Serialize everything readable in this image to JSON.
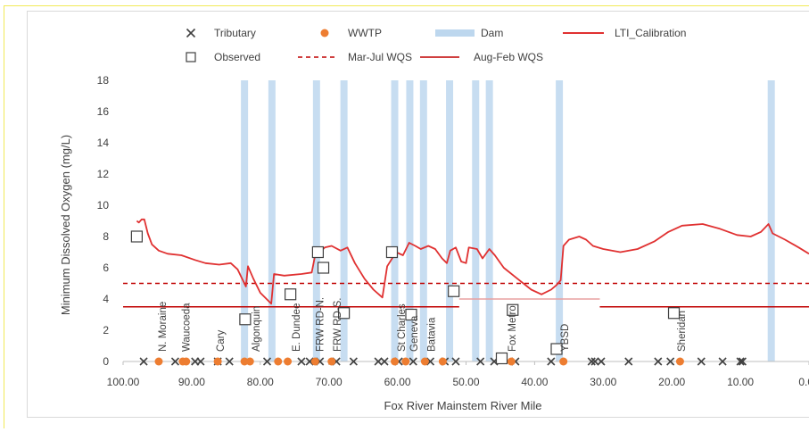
{
  "chart_data": {
    "type": "line",
    "xlabel": "Fox River Mainstem River Mile",
    "ylabel": "Minimum Dissolved Oxygen (mg/L)",
    "xlim": [
      100,
      0
    ],
    "ylim": [
      0,
      18
    ],
    "x_reversed": true,
    "x_ticks": [
      "100.00",
      "90.00",
      "80.00",
      "70.00",
      "60.00",
      "50.00",
      "40.00",
      "30.00",
      "20.00",
      "10.00",
      "0.00"
    ],
    "x_tick_values": [
      100,
      90,
      80,
      70,
      60,
      50,
      40,
      30,
      20,
      10,
      0
    ],
    "y_ticks": [
      "0",
      "2",
      "4",
      "6",
      "8",
      "10",
      "12",
      "14",
      "16",
      "18"
    ],
    "y_tick_values": [
      0,
      2,
      4,
      6,
      8,
      10,
      12,
      14,
      16,
      18
    ],
    "grid": false,
    "legend_position": "top",
    "legend": [
      {
        "label": "Tributary",
        "marker": "x",
        "color": "#404040"
      },
      {
        "label": "WWTP",
        "marker": "circle",
        "color": "#ed7d31"
      },
      {
        "label": "Dam",
        "marker": "band",
        "color": "#bdd7ee"
      },
      {
        "label": "LTI_Calibration",
        "marker": "line",
        "color": "#e03131"
      },
      {
        "label": "Observed",
        "marker": "square",
        "color": "#404040"
      },
      {
        "label": "Mar-Jul WQS",
        "marker": "dashed",
        "color": "#c00000"
      },
      {
        "label": "Aug-Feb WQS",
        "marker": "thinline",
        "color": "#c00000"
      }
    ],
    "colors": {
      "dam": "#bdd7ee",
      "calibration": "#e03131",
      "wqs": "#c00000",
      "wqs_aug_feb_mid": "#e8a0a0",
      "wwtp": "#ed7d31",
      "tributary": "#404040",
      "observed": "#404040",
      "axis": "#bfbfbf",
      "text": "#404040"
    },
    "dams": [
      82.3,
      78.3,
      71.8,
      67.8,
      60.4,
      58.2,
      56.2,
      52.4,
      48.6,
      46.6,
      36.4,
      5.5
    ],
    "calibration": [
      [
        98,
        9.0
      ],
      [
        97.7,
        8.9
      ],
      [
        97.3,
        9.1
      ],
      [
        96.9,
        9.1
      ],
      [
        96.4,
        8.2
      ],
      [
        95.8,
        7.5
      ],
      [
        94.8,
        7.1
      ],
      [
        93.5,
        6.9
      ],
      [
        91.5,
        6.8
      ],
      [
        89.5,
        6.5
      ],
      [
        88,
        6.3
      ],
      [
        86,
        6.2
      ],
      [
        84.3,
        6.3
      ],
      [
        83.3,
        5.9
      ],
      [
        82.1,
        4.8
      ],
      [
        81.8,
        6.1
      ],
      [
        81.0,
        5.3
      ],
      [
        80,
        4.4
      ],
      [
        78.4,
        3.7
      ],
      [
        78.0,
        5.6
      ],
      [
        76.5,
        5.5
      ],
      [
        74,
        5.6
      ],
      [
        72.5,
        5.7
      ],
      [
        72.0,
        6.8
      ],
      [
        71.3,
        7.0
      ],
      [
        70.6,
        7.3
      ],
      [
        69.6,
        7.4
      ],
      [
        68.3,
        7.1
      ],
      [
        67.3,
        7.3
      ],
      [
        66.2,
        6.3
      ],
      [
        64.8,
        5.3
      ],
      [
        63.5,
        4.6
      ],
      [
        62.2,
        4.1
      ],
      [
        61.5,
        6.1
      ],
      [
        60.2,
        7.0
      ],
      [
        59.2,
        6.8
      ],
      [
        58.3,
        7.6
      ],
      [
        57.4,
        7.4
      ],
      [
        56.6,
        7.2
      ],
      [
        55.5,
        7.4
      ],
      [
        54.5,
        7.2
      ],
      [
        53.5,
        6.6
      ],
      [
        52.8,
        6.3
      ],
      [
        52.3,
        7.1
      ],
      [
        51.5,
        7.3
      ],
      [
        50.7,
        6.4
      ],
      [
        50.0,
        6.3
      ],
      [
        49.6,
        7.3
      ],
      [
        48.4,
        7.2
      ],
      [
        47.6,
        6.6
      ],
      [
        46.6,
        7.2
      ],
      [
        45.8,
        6.8
      ],
      [
        44.5,
        6.0
      ],
      [
        42.5,
        5.3
      ],
      [
        40.5,
        4.6
      ],
      [
        39.0,
        4.3
      ],
      [
        37.6,
        4.6
      ],
      [
        36.8,
        4.9
      ],
      [
        36.2,
        5.2
      ],
      [
        35.8,
        7.4
      ],
      [
        35.0,
        7.8
      ],
      [
        33.5,
        8.0
      ],
      [
        32.5,
        7.8
      ],
      [
        31.5,
        7.4
      ],
      [
        30.0,
        7.2
      ],
      [
        27.5,
        7.0
      ],
      [
        25.0,
        7.2
      ],
      [
        22.5,
        7.7
      ],
      [
        20.5,
        8.3
      ],
      [
        18.5,
        8.7
      ],
      [
        15.5,
        8.8
      ],
      [
        13.0,
        8.5
      ],
      [
        10.5,
        8.1
      ],
      [
        8.5,
        8.0
      ],
      [
        7.0,
        8.3
      ],
      [
        5.9,
        8.8
      ],
      [
        5.3,
        8.2
      ],
      [
        3.5,
        7.8
      ],
      [
        1.5,
        7.3
      ],
      [
        0,
        6.9
      ]
    ],
    "mar_jul_wqs": [
      [
        100,
        5.0
      ],
      [
        0,
        5.0
      ]
    ],
    "aug_feb_wqs": [
      [
        [
          100,
          3.5
        ],
        [
          51,
          3.5
        ]
      ],
      [
        [
          51,
          4.0
        ],
        [
          30.5,
          4.0
        ]
      ],
      [
        [
          30.5,
          3.5
        ],
        [
          0,
          3.5
        ]
      ]
    ],
    "observed": [
      [
        98,
        8.0
      ],
      [
        82.2,
        2.7
      ],
      [
        75.6,
        4.3
      ],
      [
        71.6,
        7.0
      ],
      [
        70.8,
        6.0
      ],
      [
        67.8,
        3.1
      ],
      [
        60.8,
        7.0
      ],
      [
        58.0,
        3.0
      ],
      [
        51.8,
        4.5
      ],
      [
        44.8,
        0.2
      ],
      [
        43.2,
        3.3
      ],
      [
        36.8,
        0.8
      ],
      [
        19.7,
        3.1
      ]
    ],
    "wwtp": [
      94.8,
      91.3,
      90.8,
      86.2,
      82.3,
      81.5,
      77.4,
      76.0,
      72.0,
      69.6,
      60.4,
      58.8,
      56.0,
      53.4,
      43.4,
      35.8,
      18.8
    ],
    "tributary": [
      97,
      92.4,
      89.5,
      88.7,
      86.2,
      84.5,
      79.0,
      74.0,
      72.8,
      71.3,
      68.9,
      66.4,
      62.8,
      61.9,
      59.8,
      57.7,
      55.2,
      53.1,
      51.5,
      47.9,
      45.9,
      42.8,
      37.6,
      31.7,
      31.2,
      30.3,
      26.3,
      22.0,
      20.2,
      15.7,
      12.6,
      10.0,
      9.7
    ],
    "locations": [
      {
        "label": "N. Moraine",
        "x": 94.3
      },
      {
        "label": "Waucoeda",
        "x": 90.8
      },
      {
        "label": "Cary",
        "x": 85.8
      },
      {
        "label": "Algonquin",
        "x": 80.6
      },
      {
        "label": "E. Dundee",
        "x": 74.8
      },
      {
        "label": "FRW RD-N.",
        "x": 71.3
      },
      {
        "label": "FRW RD-S.",
        "x": 68.8
      },
      {
        "label": "St Charles",
        "x": 59.4
      },
      {
        "label": "Geneva",
        "x": 57.6
      },
      {
        "label": "Batavia",
        "x": 55.1
      },
      {
        "label": "Fox Metro",
        "x": 43.3
      },
      {
        "label": "YBSD",
        "x": 35.6
      },
      {
        "label": "Sheridan",
        "x": 18.6
      }
    ]
  }
}
